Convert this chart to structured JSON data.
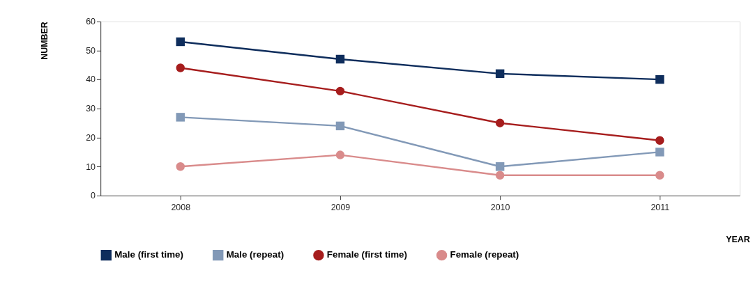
{
  "chart_data": {
    "type": "line",
    "xlabel": "YEAR",
    "ylabel": "NUMBER",
    "categories": [
      "2008",
      "2009",
      "2010",
      "2011"
    ],
    "ylim": [
      0,
      60
    ],
    "yticks": [
      0,
      10,
      20,
      30,
      40,
      50,
      60
    ],
    "grid": false,
    "legend": "bottom",
    "line_style": "solid",
    "series": [
      {
        "name": "Male (first time)",
        "color": "#0e2d5c",
        "marker": "square",
        "values": [
          53,
          47,
          42,
          40
        ]
      },
      {
        "name": "Male (repeat)",
        "color": "#8299b7",
        "marker": "square",
        "values": [
          27,
          24,
          10,
          15
        ]
      },
      {
        "name": "Female (first time)",
        "color": "#a61d1d",
        "marker": "circle",
        "values": [
          44,
          36,
          25,
          19
        ]
      },
      {
        "name": "Female (repeat)",
        "color": "#d98b8b",
        "marker": "circle",
        "values": [
          10,
          14,
          7,
          7
        ]
      }
    ]
  }
}
